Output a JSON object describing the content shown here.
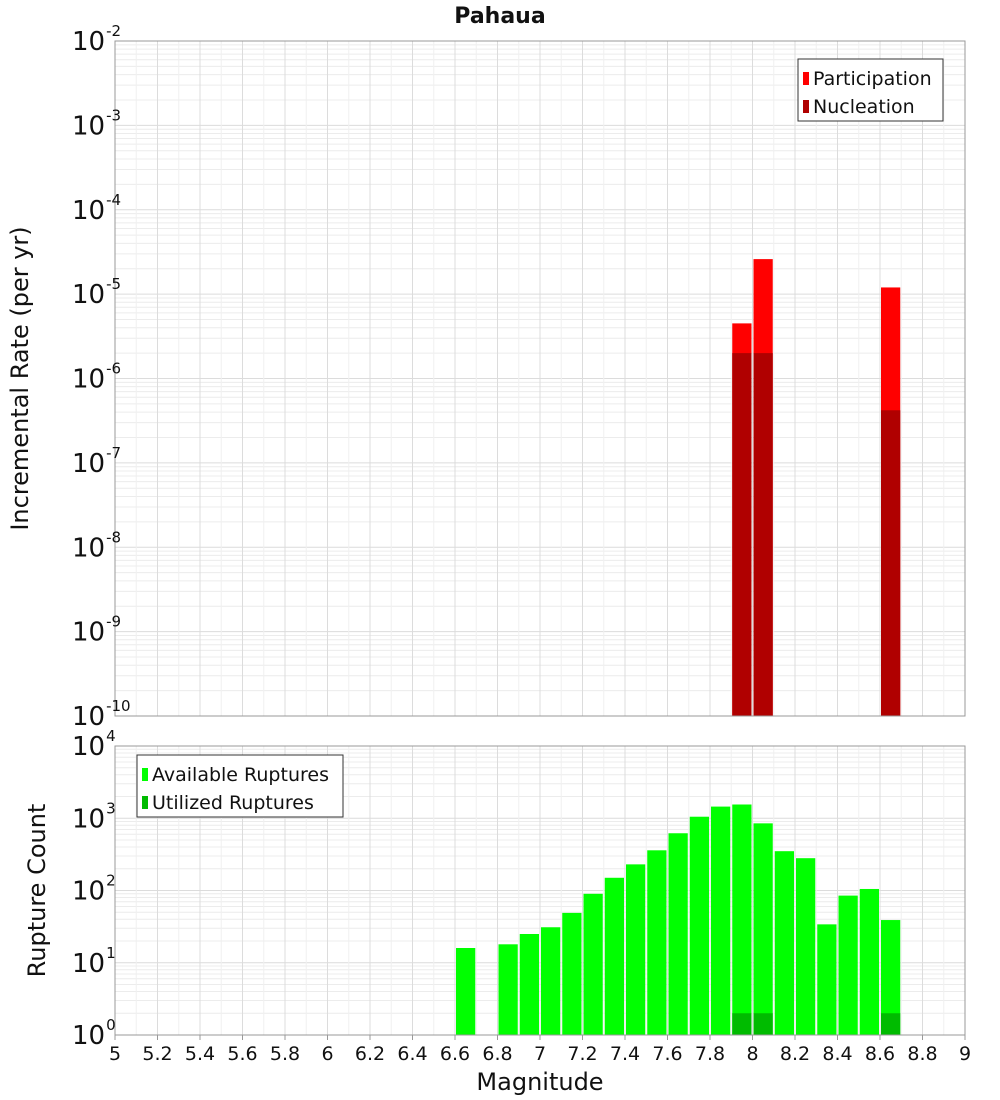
{
  "title": "Pahaua",
  "xlabel": "Magnitude",
  "chart_data": [
    {
      "type": "bar",
      "id": "rate",
      "ylabel": "Incremental Rate (per yr)",
      "yscale": "log",
      "ylim_exp": [
        -10,
        -2
      ],
      "xlim": [
        5,
        9
      ],
      "bin_width": 0.1,
      "legend_position": "top-right",
      "grid": true,
      "series": [
        {
          "name": "Participation",
          "color": "#ff0000",
          "x": [
            7.95,
            8.05,
            8.65
          ],
          "values": [
            4.5e-06,
            2.6e-05,
            1.2e-05
          ]
        },
        {
          "name": "Nucleation",
          "color": "#b00000",
          "x": [
            7.95,
            8.05,
            8.65
          ],
          "values": [
            2e-06,
            2e-06,
            4.2e-07
          ]
        }
      ]
    },
    {
      "type": "bar",
      "id": "count",
      "ylabel": "Rupture Count",
      "yscale": "log",
      "ylim_exp": [
        0,
        4
      ],
      "xlim": [
        5,
        9
      ],
      "bin_width": 0.1,
      "legend_position": "top-left",
      "grid": true,
      "series": [
        {
          "name": "Available Ruptures",
          "color": "#00ff00",
          "x": [
            6.65,
            6.85,
            6.95,
            7.05,
            7.15,
            7.25,
            7.35,
            7.45,
            7.55,
            7.65,
            7.75,
            7.85,
            7.95,
            8.05,
            8.15,
            8.25,
            8.35,
            8.45,
            8.55,
            8.65
          ],
          "values": [
            16,
            18,
            25,
            31,
            49,
            90,
            150,
            230,
            360,
            620,
            1050,
            1450,
            1550,
            850,
            350,
            280,
            34,
            85,
            105,
            39
          ]
        },
        {
          "name": "Utilized Ruptures",
          "color": "#00bb00",
          "x": [
            7.95,
            8.05,
            8.65
          ],
          "values": [
            2,
            2,
            2
          ]
        }
      ]
    }
  ],
  "x_ticks": [
    "5",
    "5.2",
    "5.4",
    "5.6",
    "5.8",
    "6",
    "6.2",
    "6.4",
    "6.6",
    "6.8",
    "7",
    "7.2",
    "7.4",
    "7.6",
    "7.8",
    "8",
    "8.2",
    "8.4",
    "8.6",
    "8.8",
    "9"
  ]
}
